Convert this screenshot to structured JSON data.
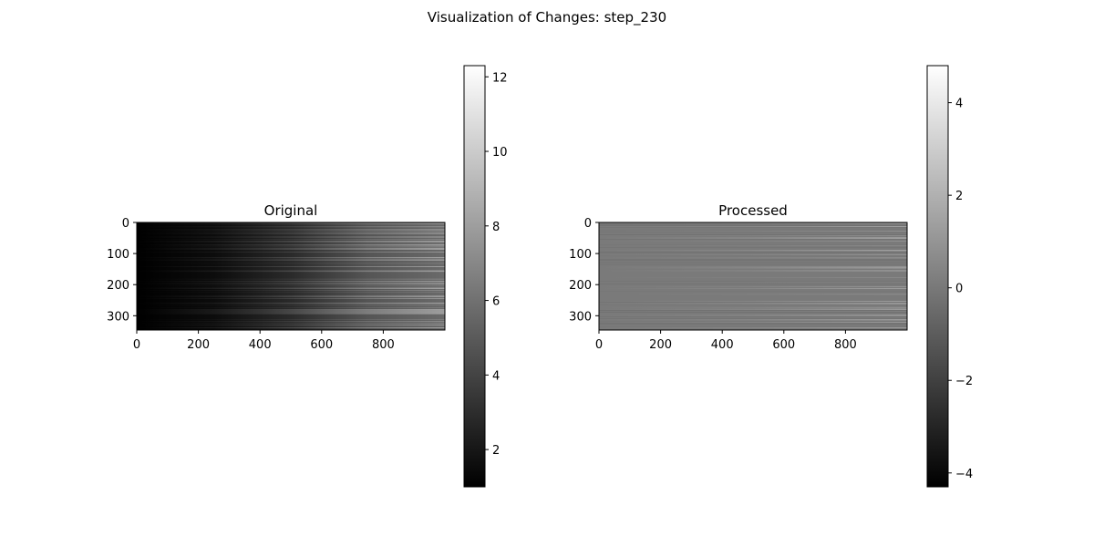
{
  "title": "Visualization of Changes: step_230",
  "chart_data": [
    {
      "type": "heatmap",
      "title": "Original",
      "colormap": "gray",
      "x_ticks": [
        0,
        200,
        400,
        600,
        800
      ],
      "y_ticks": [
        0,
        100,
        200,
        300
      ],
      "x_range": [
        0,
        999
      ],
      "y_range": [
        0,
        345
      ],
      "colorbar": {
        "range": [
          1.0,
          12.3
        ],
        "ticks": [
          2,
          4,
          6,
          8,
          10,
          12
        ],
        "tick_labels": [
          "2",
          "4",
          "6",
          "8",
          "10",
          "12"
        ]
      }
    },
    {
      "type": "heatmap",
      "title": "Processed",
      "colormap": "gray",
      "x_ticks": [
        0,
        200,
        400,
        600,
        800
      ],
      "y_ticks": [
        0,
        100,
        200,
        300
      ],
      "x_range": [
        0,
        999
      ],
      "y_range": [
        0,
        345
      ],
      "colorbar": {
        "range": [
          -4.3,
          4.8
        ],
        "ticks": [
          -4,
          -2,
          0,
          2,
          4
        ],
        "tick_labels": [
          "−4",
          "−2",
          "0",
          "2",
          "4"
        ]
      }
    }
  ]
}
